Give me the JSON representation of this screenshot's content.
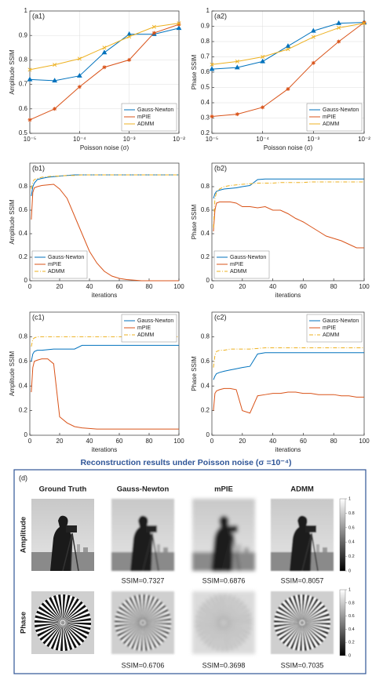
{
  "chart_data": [
    {
      "type": "line",
      "title": "(a1)",
      "ylabel": "Amplitude SSIM",
      "xlabel": "Poisson noise (σ)",
      "xscale": "log",
      "grid": true,
      "legend": "lower right",
      "x": [
        1e-05,
        3.16e-05,
        0.0001,
        0.000316,
        0.001,
        0.00316,
        0.01
      ],
      "xlim": [
        1e-05,
        0.01
      ],
      "xticks": [
        {
          "value": 1e-05,
          "label": "10⁻⁵"
        },
        {
          "value": 0.0001,
          "label": "10⁻⁴"
        },
        {
          "value": 0.001,
          "label": "10⁻³"
        },
        {
          "value": 0.01,
          "label": "10⁻²"
        }
      ],
      "ylim": [
        0.5,
        1
      ],
      "yticks": [
        0.5,
        0.6,
        0.7,
        0.8,
        0.9,
        1
      ],
      "series": [
        {
          "name": "Gauss-Newton",
          "color": "#0072bd",
          "marker": "triangle",
          "values": [
            0.72,
            0.715,
            0.735,
            0.83,
            0.905,
            0.905,
            0.93
          ]
        },
        {
          "name": "mPIE",
          "color": "#d95319",
          "marker": "star",
          "values": [
            0.555,
            0.6,
            0.69,
            0.77,
            0.8,
            0.91,
            0.945
          ]
        },
        {
          "name": "ADMM",
          "color": "#edb120",
          "marker": "x",
          "values": [
            0.76,
            0.78,
            0.805,
            0.85,
            0.895,
            0.935,
            0.95
          ]
        }
      ]
    },
    {
      "type": "line",
      "title": "(a2)",
      "ylabel": "Phase SSIM",
      "xlabel": "Poisson noise (σ)",
      "xscale": "log",
      "grid": true,
      "legend": "lower right",
      "x": [
        1e-05,
        3.16e-05,
        0.0001,
        0.000316,
        0.001,
        0.00316,
        0.01
      ],
      "xlim": [
        1e-05,
        0.01
      ],
      "xticks": [
        {
          "value": 1e-05,
          "label": "10⁻⁵"
        },
        {
          "value": 0.0001,
          "label": "10⁻⁴"
        },
        {
          "value": 0.001,
          "label": "10⁻³"
        },
        {
          "value": 0.01,
          "label": "10⁻²"
        }
      ],
      "ylim": [
        0.2,
        1
      ],
      "yticks": [
        0.2,
        0.3,
        0.4,
        0.5,
        0.6,
        0.7,
        0.8,
        0.9,
        1
      ],
      "series": [
        {
          "name": "Gauss-Newton",
          "color": "#0072bd",
          "marker": "triangle",
          "values": [
            0.62,
            0.63,
            0.67,
            0.77,
            0.87,
            0.92,
            0.925
          ]
        },
        {
          "name": "mPIE",
          "color": "#d95319",
          "marker": "star",
          "values": [
            0.31,
            0.325,
            0.37,
            0.49,
            0.66,
            0.8,
            0.925
          ]
        },
        {
          "name": "ADMM",
          "color": "#edb120",
          "marker": "x",
          "values": [
            0.65,
            0.67,
            0.7,
            0.75,
            0.83,
            0.89,
            0.92
          ]
        }
      ]
    },
    {
      "type": "line",
      "title": "(b1)",
      "ylabel": "Amplitude SSIM",
      "xlabel": "iterations",
      "grid": false,
      "legend": "lower left",
      "x": [
        1,
        2,
        3,
        5,
        8,
        12,
        16,
        20,
        25,
        30,
        35,
        40,
        45,
        50,
        55,
        60,
        65,
        70,
        75,
        80,
        85,
        90,
        95,
        100
      ],
      "xlim": [
        0,
        100
      ],
      "xticks": [
        0,
        20,
        40,
        60,
        80,
        100
      ],
      "ylim": [
        0,
        1
      ],
      "yticks": [
        0,
        0.2,
        0.4,
        0.6,
        0.8
      ],
      "series": [
        {
          "name": "Gauss-Newton",
          "color": "#0072bd",
          "dash": "solid",
          "values": [
            0.72,
            0.8,
            0.83,
            0.86,
            0.87,
            0.88,
            0.885,
            0.89,
            0.895,
            0.9,
            0.9,
            0.9,
            0.9,
            0.9,
            0.9,
            0.9,
            0.9,
            0.9,
            0.9,
            0.9,
            0.9,
            0.9,
            0.9,
            0.9
          ]
        },
        {
          "name": "mPIE",
          "color": "#d95319",
          "dash": "solid",
          "values": [
            0.52,
            0.75,
            0.79,
            0.8,
            0.81,
            0.815,
            0.82,
            0.78,
            0.7,
            0.55,
            0.4,
            0.25,
            0.15,
            0.08,
            0.04,
            0.02,
            0.01,
            0.005,
            0,
            0,
            0,
            0,
            0,
            0
          ]
        },
        {
          "name": "ADMM",
          "color": "#edb120",
          "dash": "dashdot",
          "values": [
            0.78,
            0.84,
            0.86,
            0.87,
            0.88,
            0.885,
            0.89,
            0.89,
            0.895,
            0.895,
            0.9,
            0.9,
            0.9,
            0.9,
            0.9,
            0.9,
            0.9,
            0.9,
            0.9,
            0.9,
            0.9,
            0.9,
            0.9,
            0.9
          ]
        }
      ]
    },
    {
      "type": "line",
      "title": "(b2)",
      "ylabel": "Phase SSIM",
      "xlabel": "iterations",
      "grid": false,
      "legend": "lower left",
      "x": [
        1,
        2,
        3,
        5,
        8,
        12,
        16,
        20,
        25,
        30,
        35,
        40,
        45,
        50,
        55,
        60,
        65,
        70,
        75,
        80,
        85,
        90,
        95,
        100
      ],
      "xlim": [
        0,
        100
      ],
      "xticks": [
        0,
        20,
        40,
        60,
        80,
        100
      ],
      "ylim": [
        0,
        1
      ],
      "yticks": [
        0,
        0.2,
        0.4,
        0.6,
        0.8
      ],
      "series": [
        {
          "name": "Gauss-Newton",
          "color": "#0072bd",
          "dash": "solid",
          "values": [
            0.7,
            0.74,
            0.76,
            0.77,
            0.78,
            0.785,
            0.79,
            0.8,
            0.81,
            0.86,
            0.865,
            0.865,
            0.865,
            0.865,
            0.865,
            0.865,
            0.865,
            0.865,
            0.865,
            0.865,
            0.865,
            0.865,
            0.865,
            0.865
          ]
        },
        {
          "name": "mPIE",
          "color": "#d95319",
          "dash": "solid",
          "values": [
            0.42,
            0.6,
            0.66,
            0.67,
            0.67,
            0.67,
            0.66,
            0.63,
            0.63,
            0.62,
            0.63,
            0.6,
            0.6,
            0.57,
            0.53,
            0.5,
            0.46,
            0.42,
            0.38,
            0.36,
            0.34,
            0.31,
            0.28,
            0.28
          ]
        },
        {
          "name": "ADMM",
          "color": "#edb120",
          "dash": "dashdot",
          "values": [
            0.45,
            0.7,
            0.75,
            0.78,
            0.8,
            0.81,
            0.815,
            0.82,
            0.825,
            0.83,
            0.83,
            0.83,
            0.835,
            0.835,
            0.835,
            0.835,
            0.84,
            0.84,
            0.84,
            0.84,
            0.84,
            0.84,
            0.84,
            0.84
          ]
        }
      ]
    },
    {
      "type": "line",
      "title": "(c1)",
      "ylabel": "Amplitude SSIM",
      "xlabel": "iterations",
      "grid": false,
      "legend": "upper right",
      "x": [
        1,
        2,
        3,
        5,
        8,
        12,
        16,
        20,
        25,
        30,
        35,
        40,
        45,
        50,
        55,
        60,
        65,
        70,
        75,
        80,
        85,
        90,
        95,
        100
      ],
      "xlim": [
        0,
        100
      ],
      "xticks": [
        0,
        20,
        40,
        60,
        80,
        100
      ],
      "ylim": [
        0,
        1
      ],
      "yticks": [
        0,
        0.2,
        0.4,
        0.6,
        0.8
      ],
      "series": [
        {
          "name": "Gauss-Newton",
          "color": "#0072bd",
          "dash": "solid",
          "values": [
            0.6,
            0.66,
            0.68,
            0.69,
            0.69,
            0.695,
            0.7,
            0.7,
            0.7,
            0.7,
            0.73,
            0.73,
            0.73,
            0.73,
            0.73,
            0.73,
            0.73,
            0.73,
            0.73,
            0.73,
            0.73,
            0.73,
            0.73,
            0.73
          ]
        },
        {
          "name": "mPIE",
          "color": "#d95319",
          "dash": "solid",
          "values": [
            0.35,
            0.55,
            0.6,
            0.61,
            0.62,
            0.62,
            0.58,
            0.15,
            0.1,
            0.07,
            0.06,
            0.055,
            0.05,
            0.05,
            0.05,
            0.05,
            0.05,
            0.05,
            0.05,
            0.05,
            0.05,
            0.05,
            0.05,
            0.05
          ]
        },
        {
          "name": "ADMM",
          "color": "#edb120",
          "dash": "dashdot",
          "values": [
            0.72,
            0.78,
            0.79,
            0.8,
            0.8,
            0.8,
            0.8,
            0.8,
            0.8,
            0.8,
            0.8,
            0.8,
            0.8,
            0.8,
            0.8,
            0.8,
            0.8,
            0.8,
            0.8,
            0.8,
            0.8,
            0.8,
            0.8,
            0.8
          ]
        }
      ]
    },
    {
      "type": "line",
      "title": "(c2)",
      "ylabel": "Phase SSIM",
      "xlabel": "iterations",
      "grid": false,
      "legend": "upper right",
      "x": [
        1,
        2,
        3,
        5,
        8,
        12,
        16,
        20,
        25,
        30,
        35,
        40,
        45,
        50,
        55,
        60,
        65,
        70,
        75,
        80,
        85,
        90,
        95,
        100
      ],
      "xlim": [
        0,
        100
      ],
      "xticks": [
        0,
        20,
        40,
        60,
        80,
        100
      ],
      "ylim": [
        0,
        1
      ],
      "yticks": [
        0,
        0.2,
        0.4,
        0.6,
        0.8
      ],
      "series": [
        {
          "name": "Gauss-Newton",
          "color": "#0072bd",
          "dash": "solid",
          "values": [
            0.45,
            0.48,
            0.5,
            0.51,
            0.52,
            0.53,
            0.54,
            0.55,
            0.56,
            0.66,
            0.67,
            0.67,
            0.67,
            0.67,
            0.67,
            0.67,
            0.67,
            0.67,
            0.67,
            0.67,
            0.67,
            0.67,
            0.67,
            0.67
          ]
        },
        {
          "name": "mPIE",
          "color": "#d95319",
          "dash": "solid",
          "values": [
            0.2,
            0.34,
            0.36,
            0.37,
            0.38,
            0.38,
            0.37,
            0.2,
            0.18,
            0.32,
            0.33,
            0.34,
            0.34,
            0.35,
            0.35,
            0.34,
            0.34,
            0.33,
            0.33,
            0.33,
            0.32,
            0.32,
            0.31,
            0.31
          ]
        },
        {
          "name": "ADMM",
          "color": "#edb120",
          "dash": "dashdot",
          "values": [
            0.55,
            0.65,
            0.68,
            0.69,
            0.69,
            0.7,
            0.7,
            0.7,
            0.7,
            0.705,
            0.71,
            0.71,
            0.71,
            0.71,
            0.71,
            0.71,
            0.71,
            0.71,
            0.71,
            0.71,
            0.71,
            0.71,
            0.71,
            0.71
          ]
        }
      ]
    }
  ],
  "caption": "Reconstruction results under Poisson noise (σ =10⁻⁴)",
  "panel": {
    "label": "(d)",
    "columns": [
      "Ground Truth",
      "Gauss-Newton",
      "mPIE",
      "ADMM"
    ],
    "rows": [
      {
        "label": "Amplitude",
        "ssim": [
          "SSIM=0.7327",
          "SSIM=0.6876",
          "SSIM=0.8057"
        ]
      },
      {
        "label": "Phase",
        "ssim": [
          "SSIM=0.6706",
          "SSIM=0.3698",
          "SSIM=0.7035"
        ]
      }
    ],
    "colorbar_ticks": [
      0,
      0.2,
      0.4,
      0.6,
      0.8,
      1
    ]
  }
}
